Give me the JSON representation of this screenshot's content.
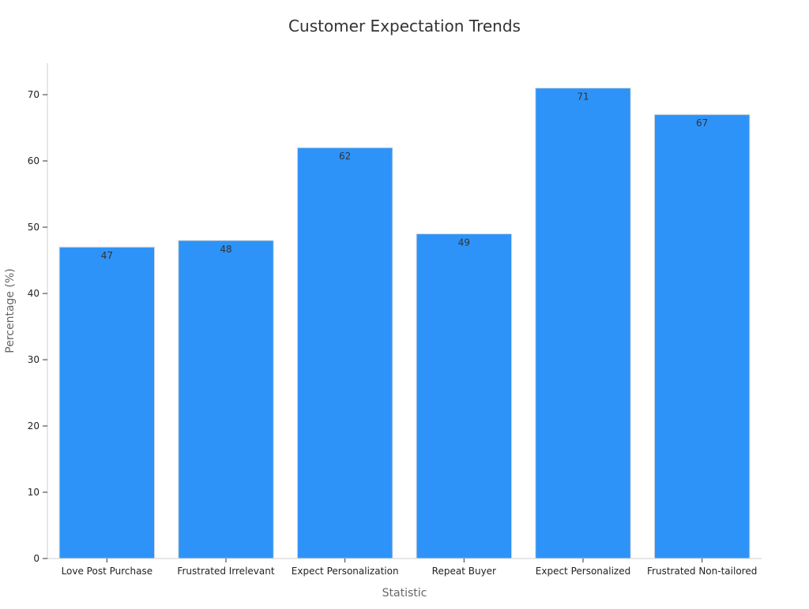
{
  "chart_data": {
    "type": "bar",
    "title": "Customer Expectation Trends",
    "xlabel": "Statistic",
    "ylabel": "Percentage (%)",
    "categories": [
      "Love Post Purchase",
      "Frustrated Irrelevant",
      "Expect Personalization",
      "Repeat Buyer",
      "Expect Personalized",
      "Frustrated Non-tailored"
    ],
    "values": [
      47,
      48,
      62,
      49,
      71,
      67
    ],
    "ylim": [
      0,
      75
    ],
    "yticks": [
      0,
      10,
      20,
      30,
      40,
      50,
      60,
      70
    ],
    "bar_color": "#2e93f8",
    "grid": false,
    "legend": "none"
  }
}
